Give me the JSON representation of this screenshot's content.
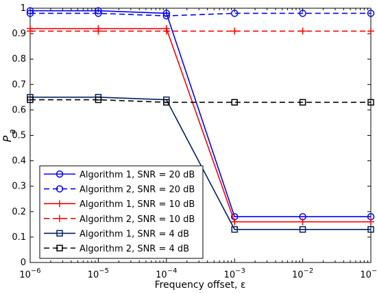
{
  "chart_data": {
    "type": "line",
    "xlabel_prefix": "Frequency offset, ",
    "xlabel_symbol": "ε",
    "ylabel_main": "P",
    "ylabel_sub": "a",
    "xscale": "log",
    "xlim": [
      1e-06,
      0.1
    ],
    "ylim": [
      0,
      1
    ],
    "x_exponents": [
      -6,
      -5,
      -4,
      -3,
      -2,
      -1
    ],
    "x_tick_base": "10",
    "yticks": [
      "0",
      "0.1",
      "0.2",
      "0.3",
      "0.4",
      "0.5",
      "0.6",
      "0.7",
      "0.8",
      "0.9",
      "1"
    ],
    "grid": false,
    "legend_position": "lower-left",
    "x": [
      1e-06,
      1e-05,
      0.0001,
      0.001,
      0.01,
      0.1
    ],
    "series": [
      {
        "name": "Algorithm 1, SNR = 20 dB",
        "values": [
          0.99,
          0.99,
          0.98,
          0.18,
          0.18,
          0.18
        ],
        "color": "#0000ff",
        "dash": "solid",
        "marker": "circle"
      },
      {
        "name": "Algorithm 2, SNR = 20 dB",
        "values": [
          0.98,
          0.98,
          0.97,
          0.98,
          0.98,
          0.98
        ],
        "color": "#0000ff",
        "dash": "dashed",
        "marker": "circle"
      },
      {
        "name": "Algorithm 1, SNR = 10 dB",
        "values": [
          0.92,
          0.92,
          0.92,
          0.16,
          0.16,
          0.16
        ],
        "color": "#ff0000",
        "dash": "solid",
        "marker": "plus"
      },
      {
        "name": "Algorithm 2, SNR = 10 dB",
        "values": [
          0.91,
          0.91,
          0.91,
          0.91,
          0.91,
          0.91
        ],
        "color": "#ff0000",
        "dash": "dashed",
        "marker": "plus"
      },
      {
        "name": "Algorithm 1, SNR = 4 dB",
        "values": [
          0.65,
          0.65,
          0.64,
          0.13,
          0.13,
          0.13
        ],
        "color": "#002060",
        "dash": "solid",
        "marker": "square"
      },
      {
        "name": "Algorithm 2, SNR = 4 dB",
        "values": [
          0.64,
          0.64,
          0.63,
          0.63,
          0.63,
          0.63
        ],
        "color": "#000000",
        "dash": "dashed",
        "marker": "square"
      }
    ]
  }
}
